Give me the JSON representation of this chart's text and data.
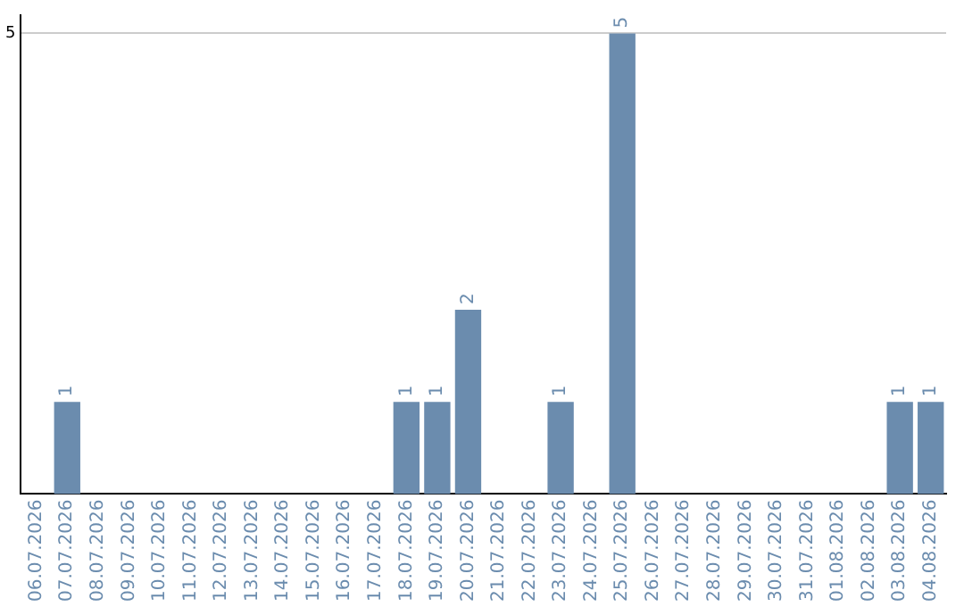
{
  "chart_data": {
    "type": "bar",
    "categories": [
      "06.07.2026",
      "07.07.2026",
      "08.07.2026",
      "09.07.2026",
      "10.07.2026",
      "11.07.2026",
      "12.07.2026",
      "13.07.2026",
      "14.07.2026",
      "15.07.2026",
      "16.07.2026",
      "17.07.2026",
      "18.07.2026",
      "19.07.2026",
      "20.07.2026",
      "21.07.2026",
      "22.07.2026",
      "23.07.2026",
      "24.07.2026",
      "25.07.2026",
      "26.07.2026",
      "27.07.2026",
      "28.07.2026",
      "29.07.2026",
      "30.07.2026",
      "31.07.2026",
      "01.08.2026",
      "02.08.2026",
      "03.08.2026",
      "04.08.2026"
    ],
    "values": [
      0,
      1,
      0,
      0,
      0,
      0,
      0,
      0,
      0,
      0,
      0,
      0,
      1,
      1,
      2,
      0,
      0,
      1,
      0,
      5,
      0,
      0,
      0,
      0,
      0,
      0,
      0,
      0,
      1,
      1
    ],
    "value_labels": [
      null,
      "1",
      null,
      null,
      null,
      null,
      null,
      null,
      null,
      null,
      null,
      null,
      "1",
      "1",
      "2",
      null,
      null,
      "1",
      null,
      "5",
      null,
      null,
      null,
      null,
      null,
      null,
      null,
      null,
      "1",
      "1"
    ],
    "color": "#6b8cae",
    "ylim": [
      0,
      5.2
    ],
    "yticks": [
      5
    ],
    "grid": "y",
    "legend": false
  }
}
